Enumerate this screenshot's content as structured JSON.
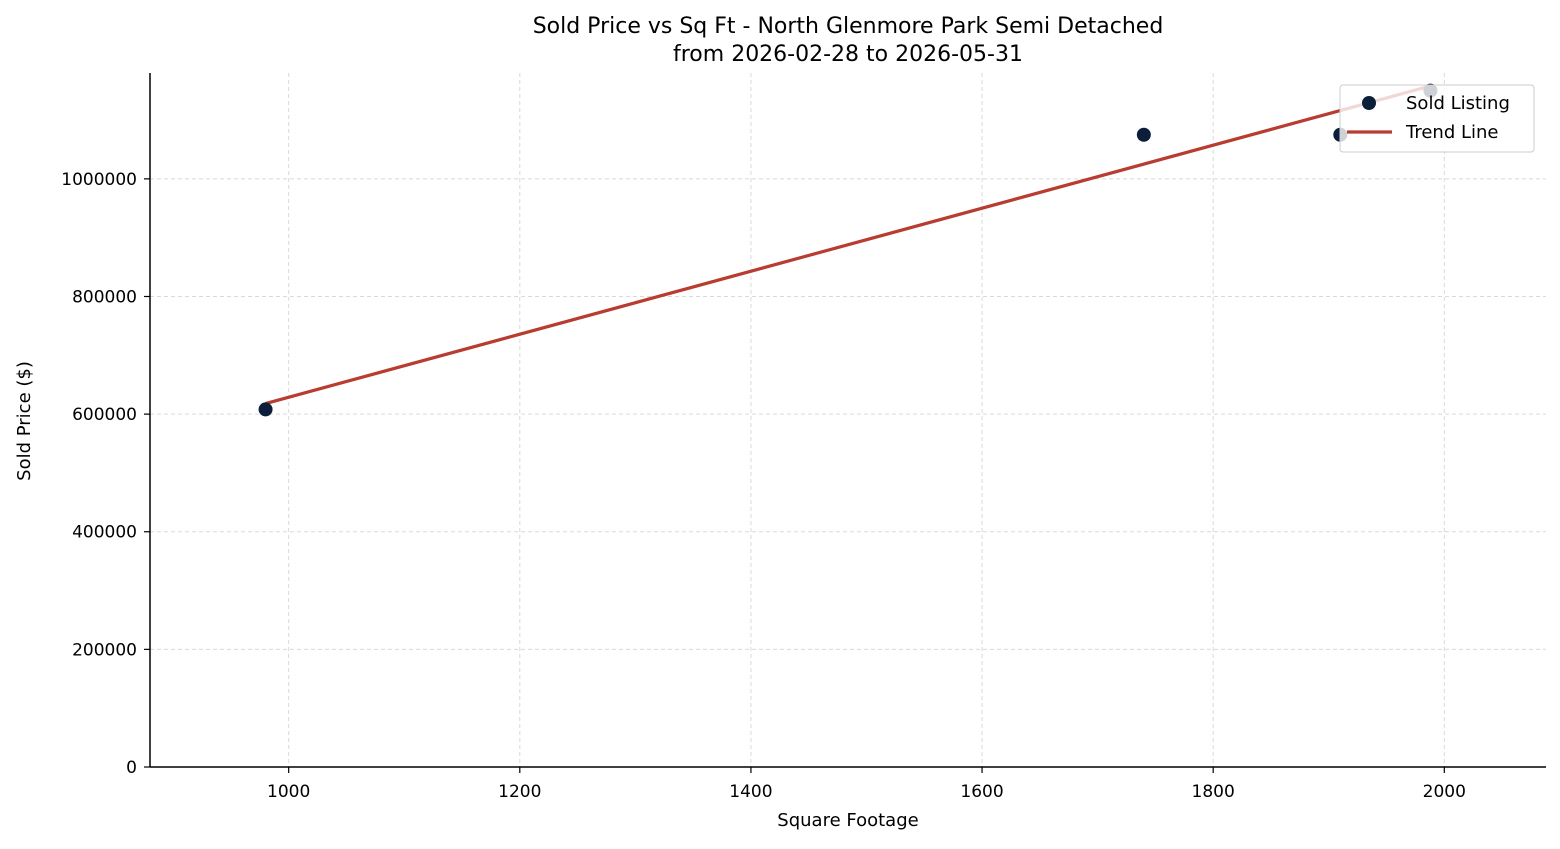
{
  "chart_data": {
    "type": "scatter",
    "title": "Sold Price vs Sq Ft - North Glenmore Park Semi Detached",
    "subtitle": "from 2026-02-28 to 2026-05-31",
    "xlabel": "Square Footage",
    "ylabel": "Sold Price ($)",
    "xlim": [
      880,
      2088
    ],
    "ylim": [
      0,
      1180000
    ],
    "xticks": [
      1000,
      1200,
      1400,
      1600,
      1800,
      2000
    ],
    "yticks": [
      0,
      200000,
      400000,
      600000,
      800000,
      1000000
    ],
    "xtick_labels": [
      "1000",
      "1200",
      "1400",
      "1600",
      "1800",
      "2000"
    ],
    "ytick_labels": [
      "0",
      "200000",
      "400000",
      "600000",
      "800000",
      "1000000"
    ],
    "grid": true,
    "legend_position": "top-right",
    "series": [
      {
        "name": "Sold Listing",
        "type": "scatter",
        "color": "#0b1f3a",
        "points": [
          {
            "x": 980,
            "y": 608000
          },
          {
            "x": 1740,
            "y": 1075000
          },
          {
            "x": 1910,
            "y": 1075000
          },
          {
            "x": 1988,
            "y": 1150000
          }
        ]
      },
      {
        "name": "Trend Line",
        "type": "line",
        "color": "#b83c30",
        "points": [
          {
            "x": 980,
            "y": 618000
          },
          {
            "x": 1988,
            "y": 1158000
          }
        ]
      }
    ]
  }
}
